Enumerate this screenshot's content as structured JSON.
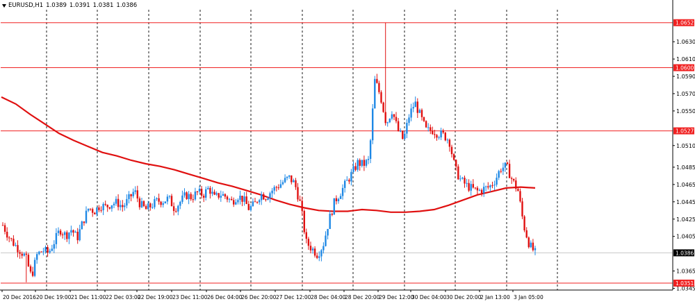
{
  "header": {
    "symbol": "EURUSD,H1",
    "ohlc": [
      "1.0389",
      "1.0391",
      "1.0381",
      "1.0386"
    ]
  },
  "colors": {
    "bull": "#1e88e5",
    "bear": "#e01010",
    "ma": "#e01010",
    "hline": "#f02020",
    "grid": "#000000",
    "current_line": "#c8c8c8"
  },
  "chart_data": {
    "type": "candlestick",
    "symbol": "EURUSD",
    "timeframe": "H1",
    "ylim": [
      1.0343,
      1.0667
    ],
    "y_ticks": [
      "1.0630",
      "1.0610",
      "1.0590",
      "1.0570",
      "1.0550",
      "1.0510",
      "1.0485",
      "1.0465",
      "1.0445",
      "1.0425",
      "1.0405",
      "1.0365",
      "1.0345"
    ],
    "x_ticks": [
      "20 Dec 2016",
      "20 Dec 19:00",
      "21 Dec 11:00",
      "22 Dec 03:00",
      "22 Dec 19:00",
      "23 Dec 11:00",
      "26 Dec 04:00",
      "26 Dec 20:00",
      "27 Dec 12:00",
      "28 Dec 04:00",
      "28 Dec 20:00",
      "29 Dec 12:00",
      "30 Dec 04:00",
      "30 Dec 20:00",
      "2 Jan 13:00",
      "3 Jan 05:00"
    ],
    "horizontal_lines": [
      {
        "label": "1.0652",
        "value": 1.0652
      },
      {
        "label": "1.0600",
        "value": 1.06
      },
      {
        "label": "1.0527",
        "value": 1.0527
      },
      {
        "label": "1.0351",
        "value": 1.0351
      }
    ],
    "current_price": {
      "label": "1.0386",
      "value": 1.0386
    },
    "moving_average": [
      1.0566,
      1.0558,
      1.0546,
      1.0535,
      1.0524,
      1.0516,
      1.0509,
      1.0502,
      1.0498,
      1.0493,
      1.0489,
      1.0486,
      1.0482,
      1.0477,
      1.0472,
      1.0467,
      1.0463,
      1.0458,
      1.0453,
      1.0447,
      1.0442,
      1.0438,
      1.0435,
      1.0434,
      1.0434,
      1.0436,
      1.0435,
      1.0433,
      1.0433,
      1.0434,
      1.0436,
      1.0441,
      1.0447,
      1.0453,
      1.0457,
      1.0461,
      1.0462,
      1.0461
    ],
    "candles_note": "approximate price path read from the chart",
    "price_path": [
      1.0418,
      1.0405,
      1.0396,
      1.0389,
      1.0381,
      1.0358,
      1.0384,
      1.0389,
      1.0386,
      1.0399,
      1.0413,
      1.0406,
      1.0413,
      1.0403,
      1.0422,
      1.0438,
      1.0434,
      1.0441,
      1.0439,
      1.0443,
      1.0444,
      1.0439,
      1.0448,
      1.0458,
      1.0442,
      1.0436,
      1.0441,
      1.0446,
      1.0446,
      1.0449,
      1.0437,
      1.0445,
      1.0453,
      1.045,
      1.0456,
      1.0453,
      1.0461,
      1.0449,
      1.0454,
      1.0451,
      1.0445,
      1.0452,
      1.0448,
      1.0437,
      1.0442,
      1.0454,
      1.0451,
      1.0458,
      1.0463,
      1.0468,
      1.0473,
      1.0466,
      1.0442,
      1.0398,
      1.0391,
      1.0384,
      1.0396,
      1.0424,
      1.0446,
      1.0456,
      1.0467,
      1.0478,
      1.049,
      1.0488,
      1.0493,
      1.0586,
      1.0567,
      1.0535,
      1.0551,
      1.0528,
      1.0516,
      1.0545,
      1.056,
      1.0543,
      1.0527,
      1.0528,
      1.0524,
      1.0522,
      1.0516,
      1.0483,
      1.047,
      1.0464,
      1.046,
      1.0457,
      1.046,
      1.0462,
      1.047,
      1.0484,
      1.0486,
      1.047,
      1.0458,
      1.0418,
      1.0395,
      1.0386
    ]
  }
}
